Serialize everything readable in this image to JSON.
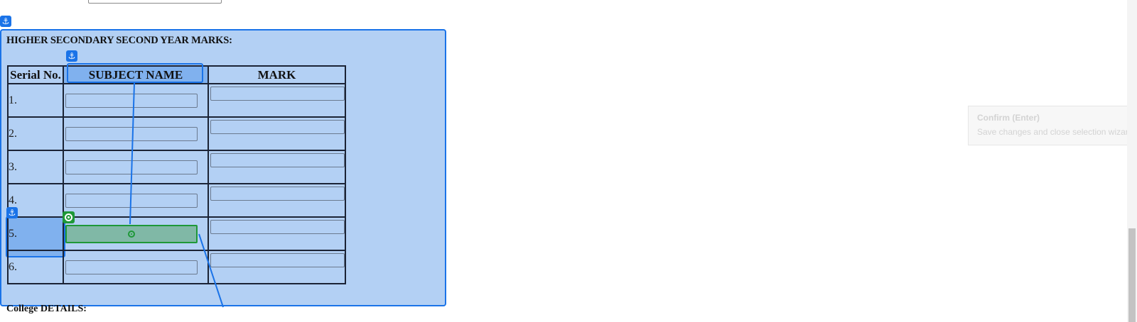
{
  "form": {
    "section_title": "HIGHER SECONDARY SECOND YEAR MARKS:",
    "columns": [
      "Serial No.",
      "SUBJECT NAME",
      "MARK"
    ],
    "rows": [
      {
        "serial": "1.",
        "subject": "",
        "mark": ""
      },
      {
        "serial": "2.",
        "subject": "",
        "mark": ""
      },
      {
        "serial": "3.",
        "subject": "",
        "mark": ""
      },
      {
        "serial": "4.",
        "subject": "",
        "mark": ""
      },
      {
        "serial": "5.",
        "subject": "",
        "mark": ""
      },
      {
        "serial": "6.",
        "subject": "",
        "mark": ""
      }
    ],
    "next_section_title": "College DETAILS:"
  },
  "overlay": {
    "anchor_icon": "anchor-icon",
    "target_icon": "target-icon",
    "accent_color": "#1a73e8",
    "selection_color": "#1e9838"
  },
  "tooltip": {
    "title": "Confirm (Enter)",
    "description": "Save changes and close selection wizard."
  }
}
